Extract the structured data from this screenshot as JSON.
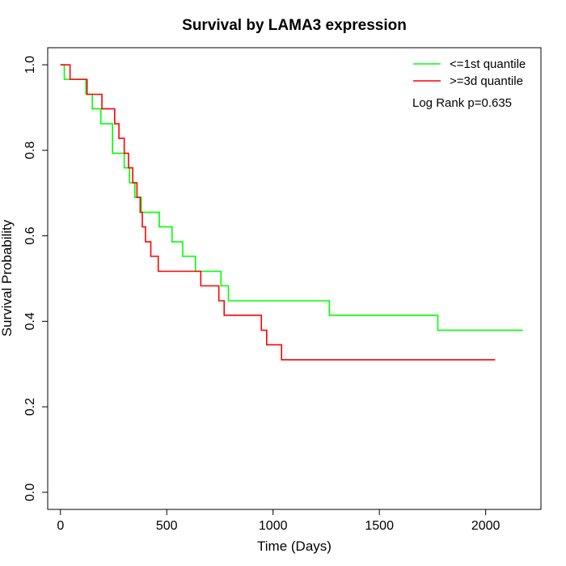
{
  "chart_data": {
    "type": "line",
    "title": "Survival by LAMA3 expression",
    "xlabel": "Time (Days)",
    "ylabel": "Survival Probability",
    "xlim": [
      -60,
      2260
    ],
    "ylim": [
      -0.04,
      1.04
    ],
    "xticks": [
      0,
      500,
      1000,
      1500,
      2000
    ],
    "xtick_labels": [
      "0",
      "500",
      "1000",
      "1500",
      "2000"
    ],
    "yticks": [
      0.0,
      0.2,
      0.4,
      0.6,
      0.8,
      1.0
    ],
    "ytick_labels": [
      "0.0",
      "0.2",
      "0.4",
      "0.6",
      "0.8",
      "1.0"
    ],
    "grid": false,
    "legend_position": "top-right",
    "annotation": "Log Rank p=0.635",
    "series": [
      {
        "name": "<=1st quantile",
        "color": "#00ff00",
        "x": [
          0,
          18,
          70,
          120,
          150,
          190,
          245,
          300,
          325,
          350,
          380,
          465,
          525,
          575,
          635,
          755,
          790,
          1265,
          1775,
          2175
        ],
        "y": [
          1.0,
          0.966,
          0.966,
          0.931,
          0.897,
          0.862,
          0.793,
          0.759,
          0.724,
          0.69,
          0.655,
          0.621,
          0.586,
          0.552,
          0.517,
          0.483,
          0.448,
          0.414,
          0.379,
          0.379
        ]
      },
      {
        "name": ">=3d quantile",
        "color": "#ff0000",
        "x": [
          0,
          45,
          125,
          195,
          255,
          275,
          300,
          320,
          340,
          360,
          375,
          385,
          400,
          425,
          460,
          660,
          745,
          770,
          945,
          970,
          1040,
          2045
        ],
        "y": [
          1.0,
          0.966,
          0.931,
          0.897,
          0.862,
          0.828,
          0.793,
          0.759,
          0.724,
          0.69,
          0.655,
          0.621,
          0.586,
          0.552,
          0.517,
          0.483,
          0.448,
          0.414,
          0.379,
          0.345,
          0.31,
          0.31
        ]
      }
    ]
  }
}
